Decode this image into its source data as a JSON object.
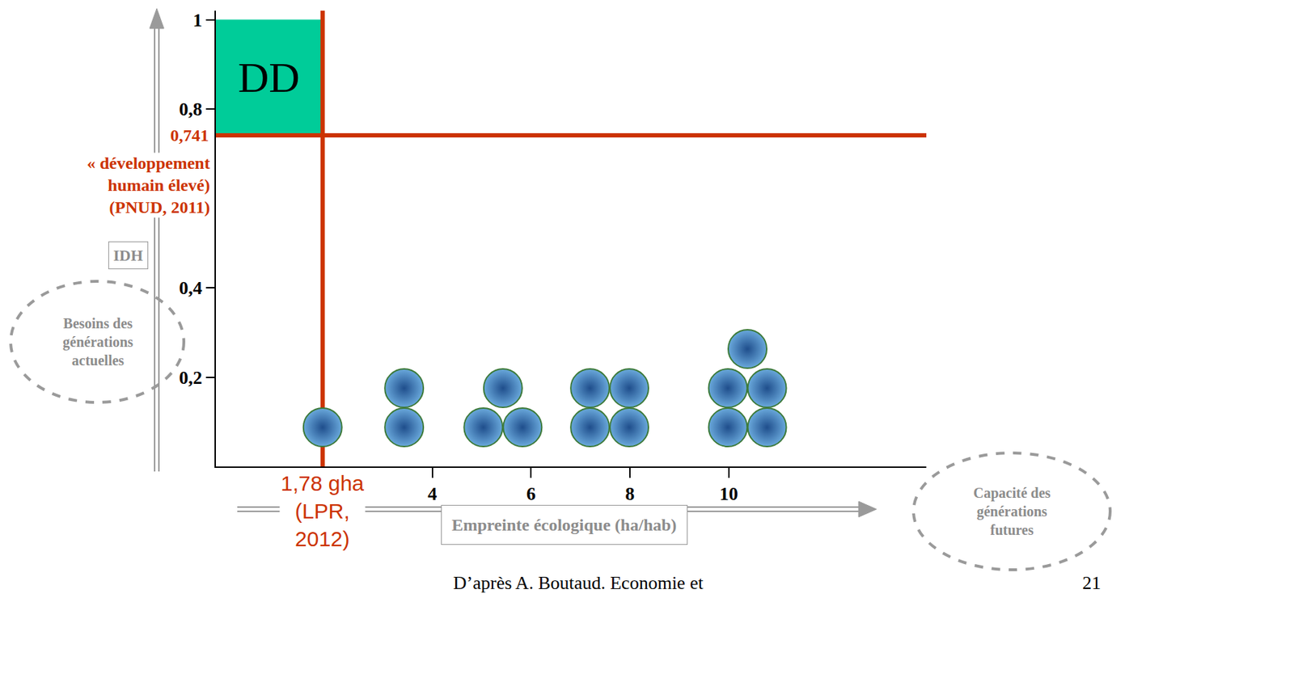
{
  "chart_data": {
    "type": "scatter",
    "x_label": "Empreinte écologique (ha/hab)",
    "y_label": "IDH",
    "xlim": [
      -0.38,
      14
    ],
    "ylim": [
      0,
      1.02
    ],
    "xticks": [
      4,
      6,
      8,
      10
    ],
    "yticks": [
      {
        "value": 0.2,
        "label": "0,2"
      },
      {
        "value": 0.4,
        "label": "0,4"
      },
      {
        "value": 0.8,
        "label": "0,8"
      },
      {
        "value": 1,
        "label": "1"
      }
    ],
    "x_threshold": {
      "value": 1.78,
      "label": [
        "1,78 gha",
        "(LPR,",
        "2012)"
      ],
      "color": "#cc3300"
    },
    "y_threshold": {
      "value": 0.741,
      "label": "0,741",
      "note": [
        "« développement",
        "humain élevé)",
        "(PNUD, 2011)"
      ],
      "color": "#cc3300"
    },
    "zone": {
      "label": "DD",
      "color": "#00cc99",
      "top": 1
    },
    "planets": {
      "x": [
        1.78,
        3.43,
        5.43,
        7.59,
        10.38
      ],
      "counts": [
        1,
        2,
        3,
        4,
        5
      ]
    },
    "x_axis_note": [
      "Capacité des",
      "générations",
      "futures"
    ],
    "y_axis_note": [
      "Besoins des",
      "générations",
      "actuelles"
    ],
    "source": "D’après A. Boutaud. Economie et",
    "page": 21
  }
}
